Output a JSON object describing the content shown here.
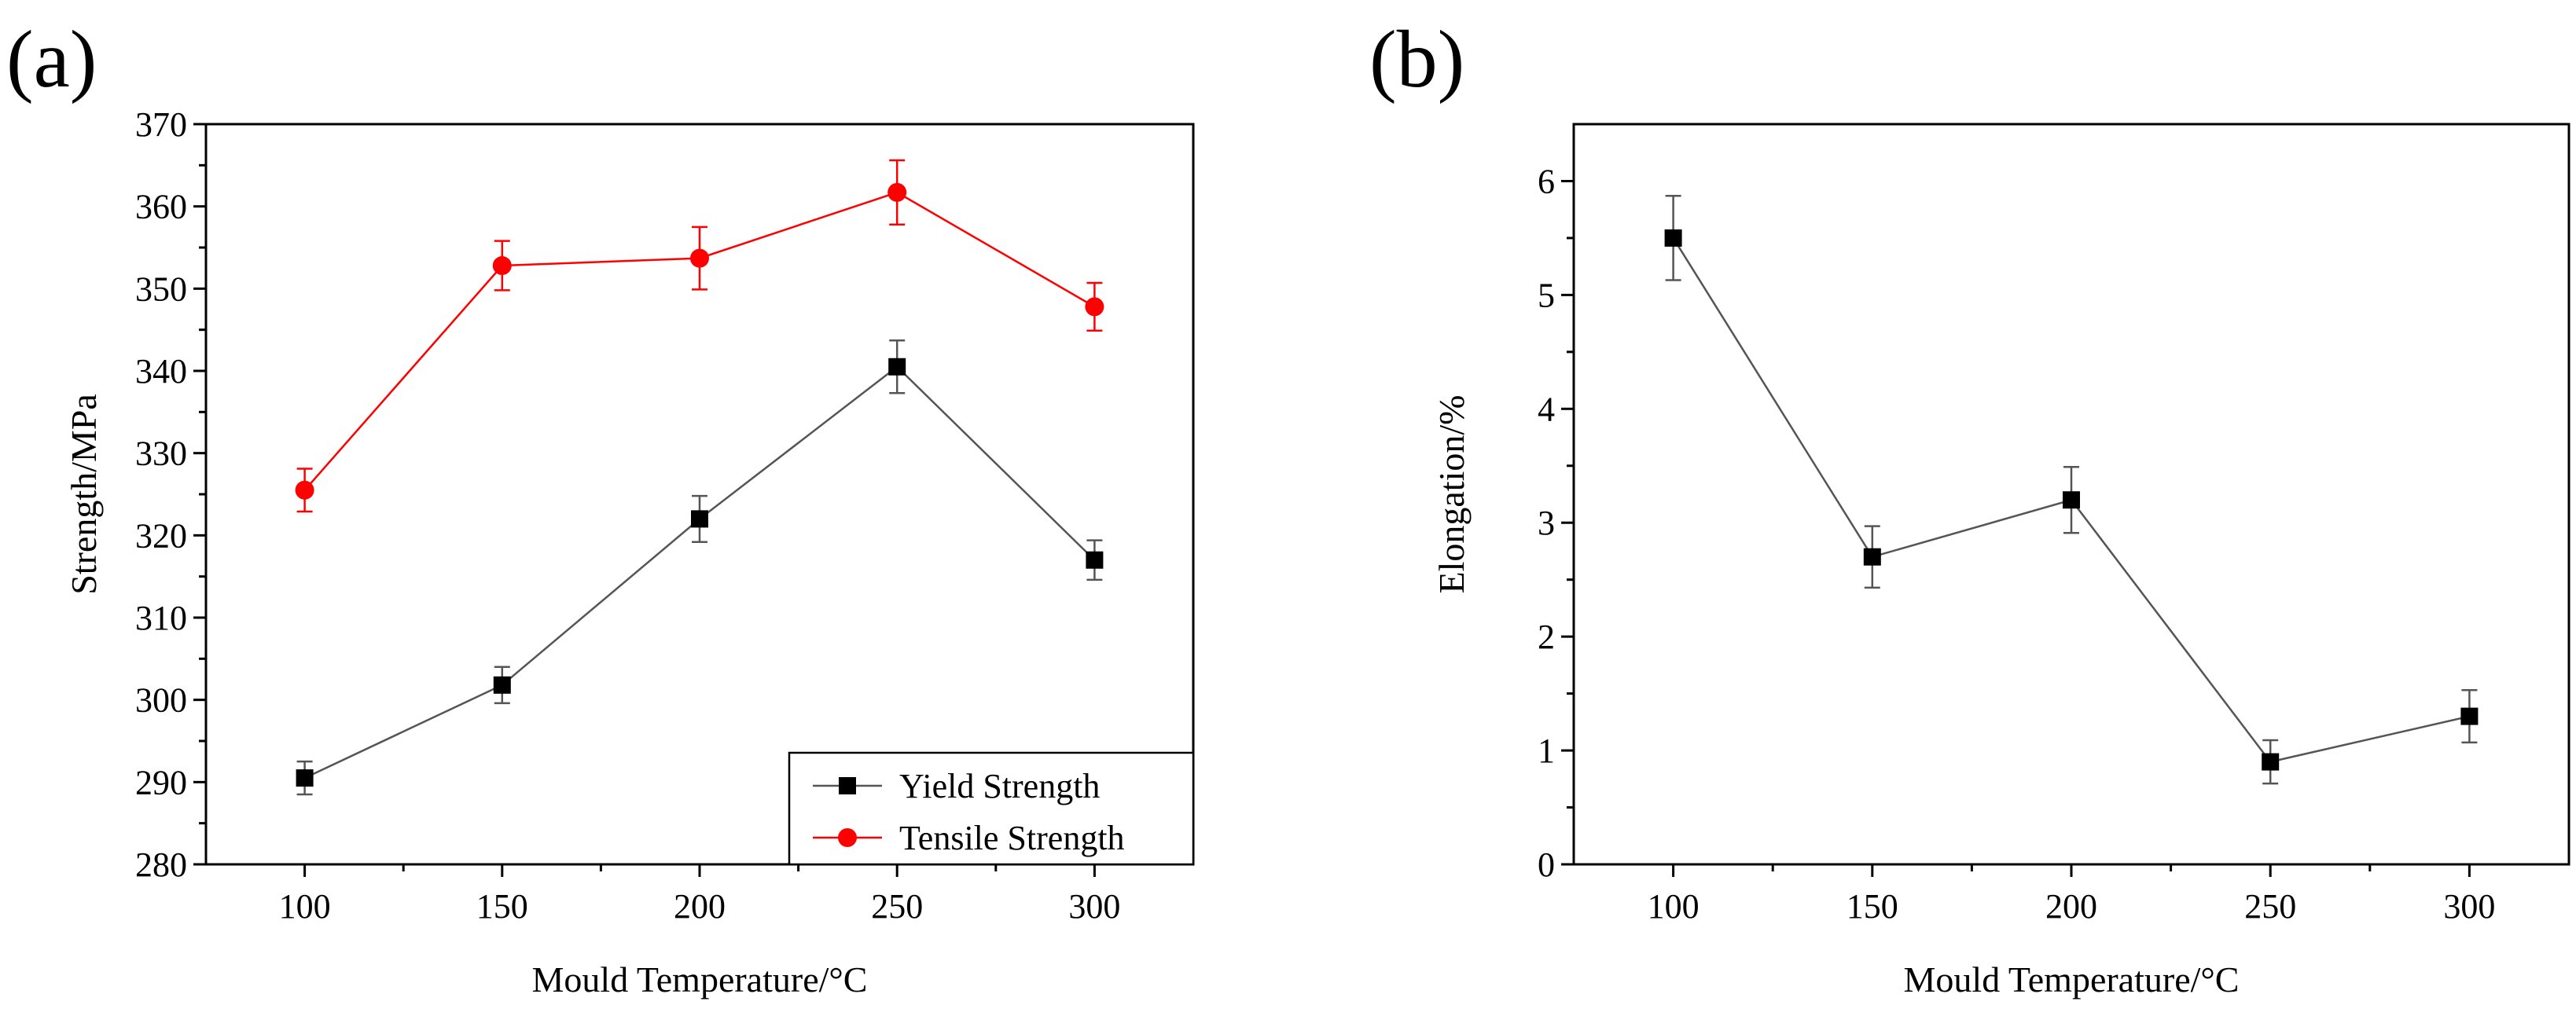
{
  "figure": {
    "panel_a_label": "(a)",
    "panel_b_label": "(b)"
  },
  "colors": {
    "yield": "#000000",
    "tensile": "#ff0000",
    "yield_line": "#555555",
    "tensile_line": "#ff0000"
  },
  "chart_data": [
    {
      "id": "a",
      "type": "line",
      "title": "",
      "xlabel": "Mould Temperature/°C",
      "ylabel": "Strength/MPa",
      "xlim": [
        75,
        325
      ],
      "ylim": [
        280,
        370
      ],
      "xticks": [
        100,
        150,
        200,
        250,
        300
      ],
      "yticks": [
        280,
        290,
        300,
        310,
        320,
        330,
        340,
        350,
        360,
        370
      ],
      "legend_position": "bottom-right",
      "x": [
        100,
        150,
        200,
        250,
        300
      ],
      "series": [
        {
          "name": "Yield Strength",
          "marker": "square",
          "color": "#000000",
          "values": [
            290.5,
            301.8,
            322.0,
            340.5,
            317.0
          ],
          "errors": [
            2.0,
            2.2,
            2.8,
            3.2,
            2.4
          ]
        },
        {
          "name": "Tensile Strength",
          "marker": "circle",
          "color": "#ff0000",
          "values": [
            325.5,
            352.8,
            353.7,
            361.7,
            347.8
          ],
          "errors": [
            2.6,
            3.0,
            3.8,
            3.9,
            2.9
          ]
        }
      ]
    },
    {
      "id": "b",
      "type": "line",
      "title": "",
      "xlabel": "Mould Temperature/°C",
      "ylabel": "Elongation/%",
      "xlim": [
        75,
        325
      ],
      "ylim": [
        0,
        6.5
      ],
      "xticks": [
        100,
        150,
        200,
        250,
        300
      ],
      "yticks": [
        0,
        1,
        2,
        3,
        4,
        5,
        6
      ],
      "legend_position": "none",
      "x": [
        100,
        150,
        200,
        250,
        300
      ],
      "series": [
        {
          "name": "Elongation",
          "marker": "square",
          "color": "#000000",
          "values": [
            5.5,
            2.7,
            3.2,
            0.9,
            1.3
          ],
          "errors": [
            0.37,
            0.27,
            0.29,
            0.19,
            0.23
          ]
        }
      ]
    }
  ]
}
